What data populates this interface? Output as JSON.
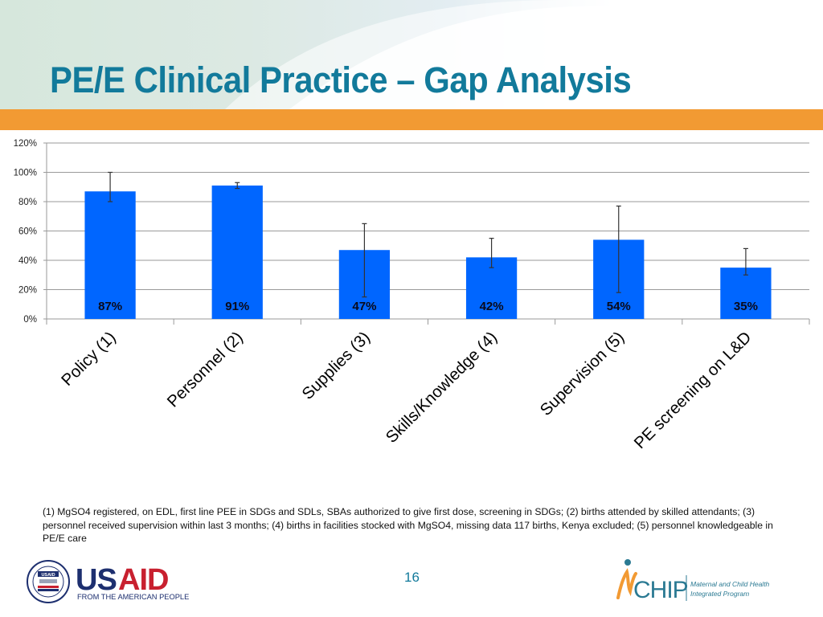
{
  "slide": {
    "title": "PE/E Clinical Practice – Gap Analysis",
    "page_number": "16",
    "footnote": "(1) MgSO4 registered, on EDL, first line PEE in SDGs and SDLs, SBAs authorized to give first dose, screening in SDGs; (2) births attended by skilled attendants; (3) personnel received supervision within last 3 months; (4) births in facilities stocked with MgSO4, missing data 117 births, Kenya excluded; (5) personnel knowledgeable in PE/E care",
    "colors": {
      "title": "#127a9b",
      "orange_band": "#f29a33",
      "bar": "#0066ff",
      "usaid_blue": "#1d2f6f",
      "usaid_red": "#c8202f",
      "mchip_orange": "#f29a33",
      "mchip_teal": "#2b7a93"
    }
  },
  "logos": {
    "usaid": {
      "wordmark_us": "US",
      "wordmark_aid": "AID",
      "tagline": "FROM THE AMERICAN PEOPLE",
      "seal_label": "USAID"
    },
    "mchip": {
      "wordmark": "CHIP",
      "line1": "Maternal and Child Health",
      "line2": "Integrated Program"
    }
  },
  "chart_data": {
    "type": "bar",
    "title": "",
    "xlabel": "",
    "ylabel": "",
    "categories": [
      "Policy (1)",
      "Personnel (2)",
      "Supplies (3)",
      "Skills/Knowledge (4)",
      "Supervision (5)",
      "PE screening on L&D"
    ],
    "values": [
      87,
      91,
      47,
      42,
      54,
      35
    ],
    "data_labels": [
      "87%",
      "91%",
      "47%",
      "42%",
      "54%",
      "35%"
    ],
    "error_low": [
      80,
      89,
      15,
      35,
      18,
      30
    ],
    "error_high": [
      100,
      93,
      65,
      55,
      77,
      48
    ],
    "ylim": [
      0,
      120
    ],
    "yticks": [
      0,
      20,
      40,
      60,
      80,
      100,
      120
    ],
    "ytick_labels": [
      "0%",
      "20%",
      "40%",
      "60%",
      "80%",
      "100%",
      "120%"
    ],
    "grid": true,
    "legend": "none",
    "unit": "%"
  }
}
